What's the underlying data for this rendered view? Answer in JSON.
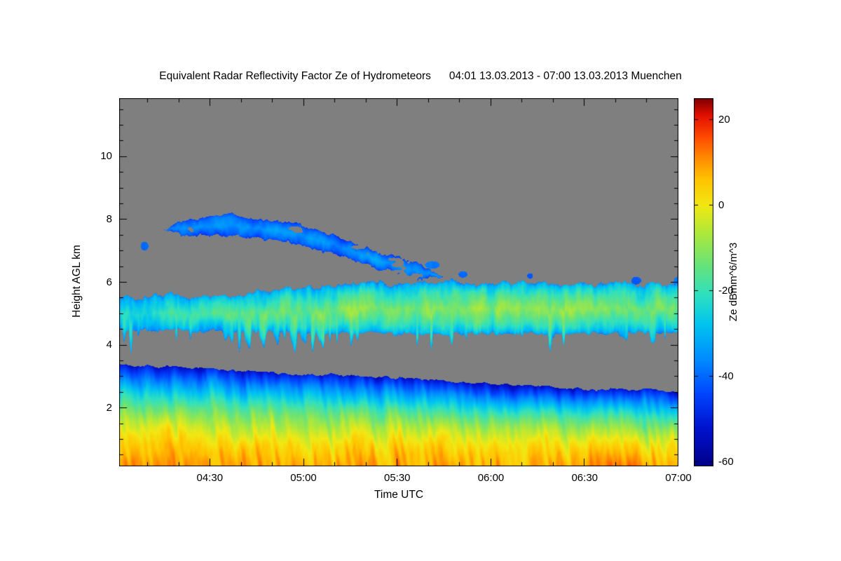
{
  "window": {
    "background": "#ffffff"
  },
  "chart_data": {
    "type": "heatmap",
    "title": "Equivalent Radar Reflectivity Factor Ze of Hydrometeors",
    "title_period": "04:01 13.03.2013 - 07:00 13.03.2013 Muenchen",
    "xlabel": "Time UTC",
    "ylabel": "Height AGL km",
    "colorbar_label": "Ze dBmm^6/m^3",
    "x_range_minutes": [
      241,
      420
    ],
    "x_minor_step_minutes": 10,
    "x_ticks": [
      {
        "minutes": 270,
        "label": "04:30"
      },
      {
        "minutes": 300,
        "label": "05:00"
      },
      {
        "minutes": 330,
        "label": "05:30"
      },
      {
        "minutes": 360,
        "label": "06:00"
      },
      {
        "minutes": 390,
        "label": "06:30"
      },
      {
        "minutes": 420,
        "label": "07:00"
      }
    ],
    "y_range_km": [
      0.15,
      11.85
    ],
    "y_ticks": [
      2,
      4,
      6,
      8,
      10
    ],
    "y_minor_step_km": 0.5,
    "colorbar_range": [
      -61,
      25
    ],
    "colorbar_ticks": [
      20,
      0,
      -20,
      -40,
      -60
    ],
    "no_data_color": "#7f7f7f",
    "colormap": [
      [
        -61,
        "#00008a"
      ],
      [
        -52,
        "#0013d0"
      ],
      [
        -44,
        "#0047ff"
      ],
      [
        -36,
        "#008cff"
      ],
      [
        -28,
        "#00c4f0"
      ],
      [
        -21,
        "#2fe0c0"
      ],
      [
        -14,
        "#68e37a"
      ],
      [
        -7,
        "#aae83e"
      ],
      [
        0,
        "#f2e813"
      ],
      [
        6,
        "#ffc400"
      ],
      [
        11,
        "#ff8c00"
      ],
      [
        16,
        "#ff4a00"
      ],
      [
        21,
        "#e31000"
      ],
      [
        25,
        "#7f0000"
      ]
    ],
    "layers": [
      {
        "name": "boundary-layer-precip",
        "t_range": [
          -0.1,
          1.1
        ],
        "base_ctrl": [
          [
            0,
            -0.3
          ],
          [
            1,
            -0.3
          ]
        ],
        "top_ctrl": [
          [
            0,
            3.38
          ],
          [
            0.2,
            3.22
          ],
          [
            0.35,
            3.05
          ],
          [
            0.5,
            2.95
          ],
          [
            0.65,
            2.8
          ],
          [
            0.8,
            2.62
          ],
          [
            1,
            2.52
          ]
        ],
        "profile": "gradient",
        "v_bottom": 9,
        "v_top": -52,
        "gamma": 2.1,
        "edge_noise_amp": 0.1,
        "edge_noise_freq": 55,
        "base_noise_amp": 0,
        "noise_amp": 6.5,
        "noise_fx": 55,
        "noise_fy": 0.75,
        "streak_amp": 6,
        "streak_freq": 150,
        "streak_tilt": 1.3,
        "seed": 3
      },
      {
        "name": "mid-level-cloud",
        "t_range": [
          -0.1,
          1.1
        ],
        "base_ctrl": [
          [
            0,
            4.5
          ],
          [
            0.3,
            4.4
          ],
          [
            0.6,
            4.35
          ],
          [
            1,
            4.4
          ]
        ],
        "top_ctrl": [
          [
            0,
            5.55
          ],
          [
            0.2,
            5.6
          ],
          [
            0.35,
            5.85
          ],
          [
            0.55,
            6.0
          ],
          [
            0.75,
            5.95
          ],
          [
            1,
            5.95
          ]
        ],
        "profile": "core",
        "v_edge": -36,
        "v_core_ctrl": [
          [
            0,
            -23
          ],
          [
            0.2,
            -16
          ],
          [
            0.4,
            -12
          ],
          [
            0.6,
            -10
          ],
          [
            0.8,
            -10
          ],
          [
            1,
            -13
          ]
        ],
        "edge_noise_amp": 0.22,
        "edge_noise_freq": 80,
        "base_noise_amp": 0.12,
        "noise_amp": 8,
        "noise_fx": 60,
        "noise_fy": 1.3,
        "streak_drop": 0.85,
        "streak_drop_freq": 160,
        "seed": 11
      },
      {
        "name": "upper-cloud-band",
        "t_range": [
          0.08,
          0.58
        ],
        "base_ctrl": [
          [
            0.08,
            7.5
          ],
          [
            0.2,
            7.5
          ],
          [
            0.3,
            7.25
          ],
          [
            0.38,
            6.95
          ],
          [
            0.46,
            6.45
          ],
          [
            0.58,
            5.95
          ]
        ],
        "top_ctrl": [
          [
            0.08,
            7.95
          ],
          [
            0.2,
            8.15
          ],
          [
            0.3,
            7.9
          ],
          [
            0.38,
            7.5
          ],
          [
            0.46,
            7.0
          ],
          [
            0.58,
            6.35
          ]
        ],
        "profile": "core",
        "v_edge": -46,
        "v_core_ctrl": [
          [
            0.08,
            -37
          ],
          [
            0.3,
            -33
          ],
          [
            0.58,
            -35
          ]
        ],
        "edge_noise_amp": 0.16,
        "edge_noise_freq": 70,
        "base_noise_amp": 0.14,
        "noise_amp": 6,
        "noise_fx": 45,
        "noise_fy": 1.6,
        "gate_freq": 22,
        "gate_thresh": 0.33,
        "seed": 23
      }
    ],
    "blobs": [
      {
        "t": 0.045,
        "km": 7.15,
        "rt": 0.007,
        "rkm": 0.14,
        "v": -40
      },
      {
        "t": 0.56,
        "km": 6.55,
        "rt": 0.013,
        "rkm": 0.12,
        "v": -38
      },
      {
        "t": 0.615,
        "km": 6.25,
        "rt": 0.008,
        "rkm": 0.1,
        "v": -40
      },
      {
        "t": 0.735,
        "km": 6.2,
        "rt": 0.005,
        "rkm": 0.09,
        "v": -43
      },
      {
        "t": 0.925,
        "km": 6.05,
        "rt": 0.009,
        "rkm": 0.12,
        "v": -41
      },
      {
        "t": 0.998,
        "km": 6.0,
        "rt": 0.006,
        "rkm": 0.16,
        "v": -39
      }
    ]
  }
}
